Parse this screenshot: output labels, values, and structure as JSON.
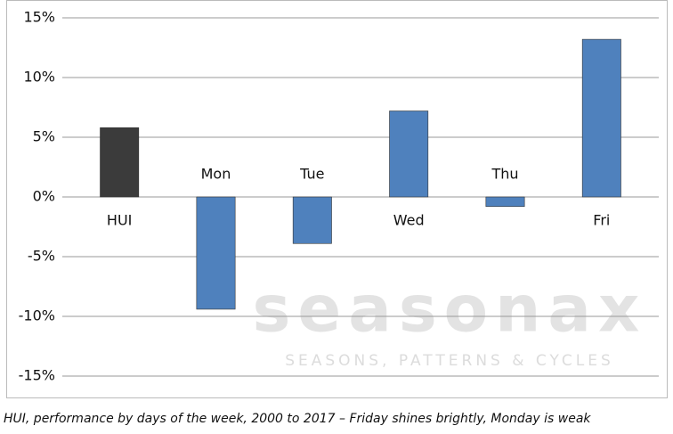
{
  "chart_data": {
    "type": "bar",
    "caption": "HUI, performance by days of the week, 2000 to 2017 –  Friday shines brightly, Monday is weak",
    "categories": [
      "HUI",
      "Mon",
      "Tue",
      "Wed",
      "Thu",
      "Fri"
    ],
    "values": [
      5.8,
      -9.4,
      -3.9,
      7.2,
      -0.8,
      13.2
    ],
    "colors": [
      "#3b3b3b",
      "#4f81bd",
      "#4f81bd",
      "#4f81bd",
      "#4f81bd",
      "#4f81bd"
    ],
    "ylim": [
      -15,
      15
    ],
    "yticks": [
      {
        "value": -15,
        "label": "-15%"
      },
      {
        "value": -10,
        "label": "-10%"
      },
      {
        "value": -5,
        "label": "-5%"
      },
      {
        "value": 0,
        "label": "0%"
      },
      {
        "value": 5,
        "label": "5%"
      },
      {
        "value": 10,
        "label": "10%"
      },
      {
        "value": 15,
        "label": "15%"
      }
    ],
    "grid": true,
    "watermark": {
      "logo": "seasonax",
      "tagline": "SEASONS, PATTERNS & CYCLES"
    }
  }
}
